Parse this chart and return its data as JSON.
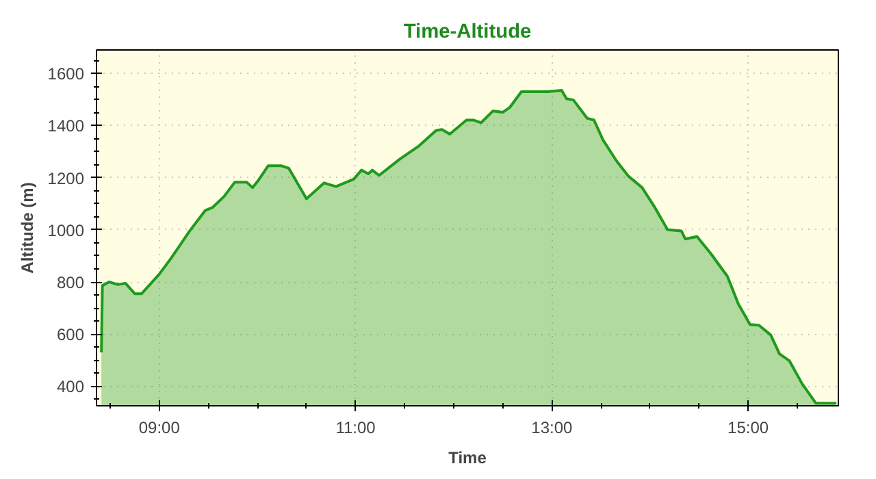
{
  "chart_data": {
    "type": "area",
    "title": "Time-Altitude",
    "xlabel": "Time",
    "ylabel": "Altitude (m)",
    "x": [
      8.41,
      8.42,
      8.49,
      8.58,
      8.655,
      8.75,
      8.82,
      9.0,
      9.12,
      9.31,
      9.47,
      9.54,
      9.66,
      9.77,
      9.89,
      9.95,
      10.01,
      10.11,
      10.24,
      10.32,
      10.5,
      10.68,
      10.8,
      10.98,
      11.06,
      11.13,
      11.17,
      11.24,
      11.45,
      11.64,
      11.82,
      11.88,
      11.96,
      12.13,
      12.2,
      12.28,
      12.4,
      12.5,
      12.57,
      12.69,
      12.96,
      13.1,
      13.15,
      13.22,
      13.36,
      13.43,
      13.52,
      13.66,
      13.78,
      13.92,
      14.04,
      14.18,
      14.32,
      14.36,
      14.48,
      14.62,
      14.79,
      14.9,
      15.02,
      15.11,
      15.23,
      15.32,
      15.42,
      15.55,
      15.69,
      15.9
    ],
    "series": [
      {
        "color": "#1f9a1f",
        "values": [
          530,
          786,
          800,
          790,
          795,
          755,
          755,
          830,
          891,
          996,
          1075,
          1085,
          1128,
          1183,
          1183,
          1162,
          1190,
          1246,
          1246,
          1236,
          1119,
          1180,
          1166,
          1194,
          1229,
          1215,
          1229,
          1209,
          1271,
          1320,
          1381,
          1385,
          1367,
          1421,
          1421,
          1411,
          1456,
          1451,
          1469,
          1530,
          1530,
          1535,
          1503,
          1498,
          1428,
          1421,
          1346,
          1264,
          1206,
          1162,
          1092,
          1000,
          996,
          965,
          974,
          909,
          821,
          716,
          637,
          634,
          597,
          524,
          498,
          410,
          335,
          335
        ]
      }
    ],
    "xlim": [
      8.36,
      15.92
    ],
    "ylim": [
      325,
      1690
    ],
    "xticks": [
      {
        "value": 9,
        "label": "09:00"
      },
      {
        "value": 11,
        "label": "11:00"
      },
      {
        "value": 13,
        "label": "13:00"
      },
      {
        "value": 15,
        "label": "15:00"
      }
    ],
    "yticks": [
      400,
      600,
      800,
      1000,
      1200,
      1400,
      1600
    ],
    "grid": true
  }
}
